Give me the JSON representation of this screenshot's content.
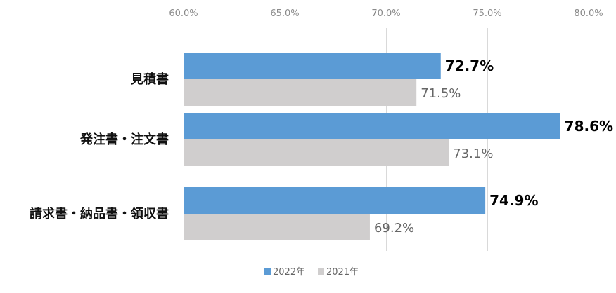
{
  "chart_data": {
    "type": "bar",
    "orientation": "horizontal",
    "categories": [
      "見積書",
      "発注書・注文書",
      "請求書・納品書・領収書"
    ],
    "series": [
      {
        "name": "2022年",
        "values": [
          72.7,
          78.6,
          74.9
        ],
        "color": "#5b9bd5"
      },
      {
        "name": "2021年",
        "values": [
          71.5,
          73.1,
          69.2
        ],
        "color": "#d0cece"
      }
    ],
    "value_labels": [
      [
        "72.7%",
        "78.6%",
        "74.9%"
      ],
      [
        "71.5%",
        "73.1%",
        "69.2%"
      ]
    ],
    "ticks": [
      60,
      65,
      70,
      75,
      80
    ],
    "tick_labels": [
      "60.0%",
      "65.0%",
      "70.0%",
      "75.0%",
      "80.0%"
    ],
    "xlim": [
      60,
      80
    ],
    "axis_position": "top",
    "grid": true,
    "legend_position": "bottom"
  }
}
